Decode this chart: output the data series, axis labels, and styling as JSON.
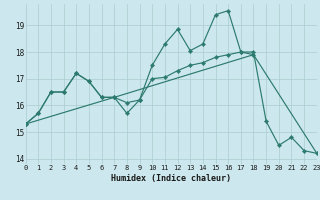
{
  "xlabel": "Humidex (Indice chaleur)",
  "xlim": [
    0,
    23
  ],
  "ylim": [
    13.8,
    19.8
  ],
  "yticks": [
    14,
    15,
    16,
    17,
    18,
    19
  ],
  "xticks": [
    0,
    1,
    2,
    3,
    4,
    5,
    6,
    7,
    8,
    9,
    10,
    11,
    12,
    13,
    14,
    15,
    16,
    17,
    18,
    19,
    20,
    21,
    22,
    23
  ],
  "bg_color": "#cce8ee",
  "grid_color": "#aacccc",
  "line_color": "#2d7a6e",
  "line1_x": [
    0,
    1,
    2,
    3,
    4,
    5,
    6,
    7,
    8,
    9,
    10,
    11,
    12,
    13,
    14,
    15,
    16,
    17,
    18
  ],
  "line1_y": [
    15.3,
    15.7,
    16.5,
    16.5,
    17.2,
    16.9,
    16.3,
    16.3,
    15.7,
    16.2,
    17.5,
    18.3,
    18.85,
    18.05,
    18.3,
    19.4,
    19.55,
    18.0,
    17.9
  ],
  "line2_x": [
    0,
    1,
    2,
    3,
    4,
    5,
    6,
    7,
    8,
    9,
    10,
    11,
    12,
    13,
    14,
    15,
    16,
    17,
    18,
    19,
    20,
    21,
    22,
    23
  ],
  "line2_y": [
    15.3,
    15.7,
    16.5,
    16.5,
    17.2,
    16.9,
    16.3,
    16.3,
    16.1,
    16.2,
    17.0,
    17.05,
    17.3,
    17.5,
    17.6,
    17.8,
    17.9,
    18.0,
    18.0,
    15.4,
    14.5,
    14.8,
    14.3,
    14.2
  ],
  "line3_x": [
    0,
    7,
    18,
    23
  ],
  "line3_y": [
    15.3,
    16.3,
    17.9,
    14.2
  ]
}
